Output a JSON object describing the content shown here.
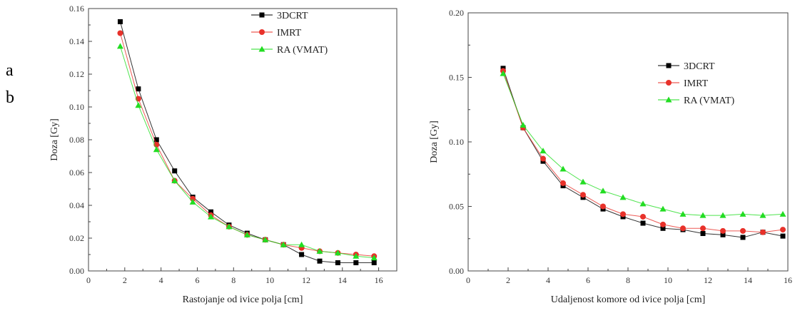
{
  "side_labels": [
    "a",
    "b"
  ],
  "chart_data": [
    {
      "type": "line",
      "title": "",
      "xlabel": "Rastojanje od ivice polja [cm]",
      "ylabel": "Doza [Gy]",
      "xlim": [
        0,
        17
      ],
      "ylim": [
        0,
        0.16
      ],
      "x_ticks": [
        "0",
        "2",
        "4",
        "6",
        "8",
        "10",
        "12",
        "14",
        "16"
      ],
      "y_ticks": [
        "0.00",
        "0.02",
        "0.04",
        "0.06",
        "0.08",
        "0.10",
        "0.12",
        "0.14",
        "0.16"
      ],
      "legend_position": "top-right",
      "grid": false,
      "x": [
        1.75,
        2.75,
        3.75,
        4.75,
        5.75,
        6.75,
        7.75,
        8.75,
        9.75,
        10.75,
        11.75,
        12.75,
        13.75,
        14.75,
        15.75
      ],
      "series": [
        {
          "name": "3DCRT",
          "color": "#000000",
          "marker": "square",
          "values": [
            0.152,
            0.111,
            0.08,
            0.061,
            0.045,
            0.036,
            0.028,
            0.023,
            0.019,
            0.016,
            0.01,
            0.006,
            0.005,
            0.005,
            0.005
          ]
        },
        {
          "name": "IMRT",
          "color": "#e8312a",
          "marker": "circle",
          "values": [
            0.145,
            0.105,
            0.077,
            0.055,
            0.044,
            0.034,
            0.027,
            0.022,
            0.019,
            0.016,
            0.014,
            0.012,
            0.011,
            0.01,
            0.009
          ]
        },
        {
          "name": "RA (VMAT)",
          "color": "#22dd22",
          "marker": "triangle",
          "values": [
            0.137,
            0.101,
            0.074,
            0.055,
            0.042,
            0.033,
            0.027,
            0.022,
            0.019,
            0.016,
            0.016,
            0.012,
            0.011,
            0.009,
            0.008
          ]
        }
      ]
    },
    {
      "type": "line",
      "title": "",
      "xlabel": "Udaljenost komore od ivice polja [cm]",
      "ylabel": "Doza [Gy]",
      "xlim": [
        0,
        16
      ],
      "ylim": [
        0,
        0.2
      ],
      "x_ticks": [
        "0",
        "2",
        "4",
        "6",
        "8",
        "10",
        "12",
        "14",
        "16"
      ],
      "y_ticks": [
        "0.00",
        "0.05",
        "0.10",
        "0.15",
        "0.20"
      ],
      "legend_position": "top-right",
      "grid": false,
      "x": [
        1.75,
        2.75,
        3.75,
        4.75,
        5.75,
        6.75,
        7.75,
        8.75,
        9.75,
        10.75,
        11.75,
        12.75,
        13.75,
        14.75,
        15.75
      ],
      "series": [
        {
          "name": "3DCRT",
          "color": "#000000",
          "marker": "square",
          "values": [
            0.157,
            0.111,
            0.085,
            0.066,
            0.057,
            0.048,
            0.042,
            0.037,
            0.033,
            0.032,
            0.029,
            0.028,
            0.026,
            0.03,
            0.027
          ]
        },
        {
          "name": "IMRT",
          "color": "#e8312a",
          "marker": "circle",
          "values": [
            0.155,
            0.111,
            0.087,
            0.068,
            0.059,
            0.05,
            0.044,
            0.042,
            0.036,
            0.033,
            0.033,
            0.031,
            0.031,
            0.03,
            0.032
          ]
        },
        {
          "name": "RA (VMAT)",
          "color": "#22dd22",
          "marker": "triangle",
          "values": [
            0.153,
            0.113,
            0.093,
            0.079,
            0.069,
            0.062,
            0.057,
            0.052,
            0.048,
            0.044,
            0.043,
            0.043,
            0.044,
            0.043,
            0.044
          ]
        }
      ]
    }
  ]
}
